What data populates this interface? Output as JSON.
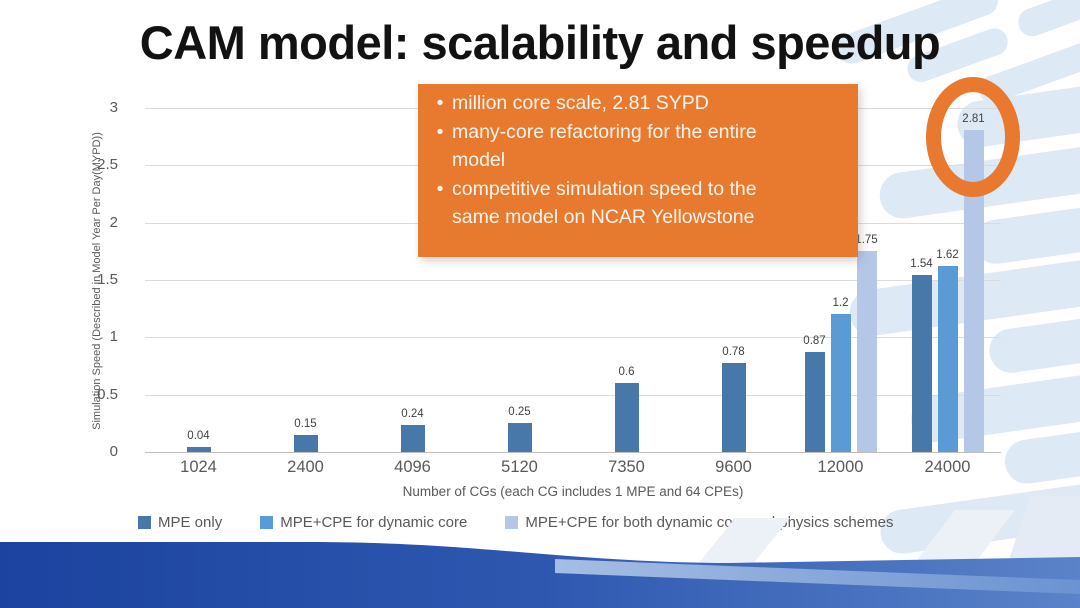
{
  "title": "CAM model: scalability and speedup",
  "callout": {
    "bullets": [
      "million core scale, 2.81 SYPD",
      "many-core refactoring for the entire model",
      "competitive simulation speed to the same model on NCAR Yellowstone"
    ],
    "bullet_char": "•",
    "background": "#E87A30",
    "text_color": "#FCF5ED"
  },
  "chart_data": {
    "type": "bar",
    "title": "",
    "xlabel": "Number of CGs (each CG includes 1 MPE and 64 CPEs)",
    "ylabel": "Simulation Speed (Described in Model Year Per Day(MYPD))",
    "categories": [
      "1024",
      "2400",
      "4096",
      "5120",
      "7350",
      "9600",
      "12000",
      "24000"
    ],
    "series": [
      {
        "name": "MPE only",
        "color": "#4778A9",
        "values": [
          0.04,
          0.15,
          0.24,
          0.25,
          0.6,
          0.78,
          0.87,
          1.54
        ]
      },
      {
        "name": "MPE+CPE for dynamic core",
        "color": "#5B9BD5",
        "values": [
          null,
          null,
          null,
          null,
          null,
          null,
          1.2,
          1.62
        ]
      },
      {
        "name": "MPE+CPE for both dynamic core and physics schemes",
        "color": "#B4C7E7",
        "values": [
          null,
          null,
          null,
          null,
          null,
          null,
          1.75,
          2.81
        ]
      }
    ],
    "ylim": [
      0,
      3
    ],
    "yticks": [
      0,
      0.5,
      1,
      1.5,
      2,
      2.5,
      3
    ],
    "grid": true,
    "legend_position": "bottom",
    "annotation": {
      "highlighted_value": 2.81,
      "highlight_shape": "orange-ellipse"
    }
  },
  "colors": {
    "accent_orange": "#E87A30",
    "footer_blue_dark": "#1B439F",
    "footer_blue_light": "#5A83C9",
    "pattern_blue": "#DDE9F5",
    "gridline": "#DBDBDB",
    "axis_text": "#595959"
  }
}
